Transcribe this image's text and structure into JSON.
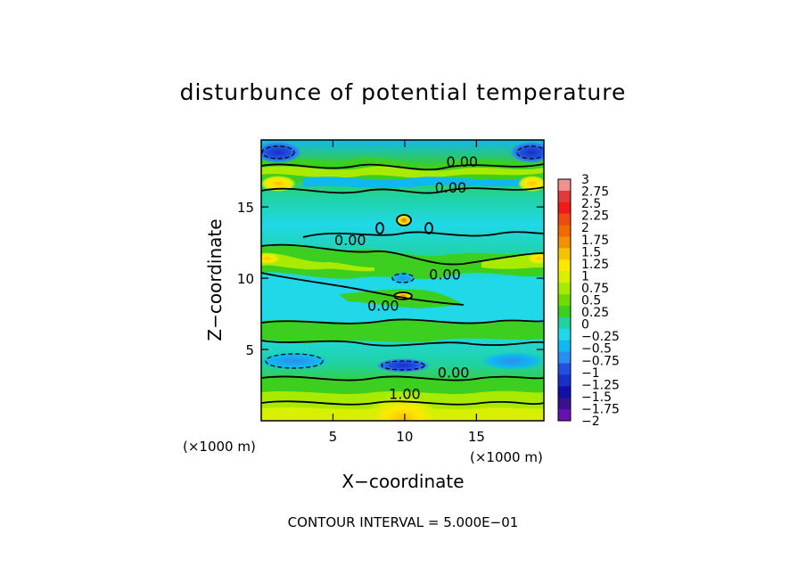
{
  "chart_data": {
    "type": "heatmap",
    "title": "disturbunce of potential temperature",
    "xlabel": "X−coordinate",
    "ylabel": "Z−coordinate",
    "x_unit": "(×1000 m)",
    "y_unit": "(×1000 m)",
    "xlim": [
      0,
      19.7
    ],
    "ylim": [
      0,
      19.7
    ],
    "x_ticks": [
      5,
      10,
      15
    ],
    "y_ticks": [
      5,
      10,
      15
    ],
    "footnote": "CONTOUR INTERVAL = 5.000E−01",
    "colorbar": {
      "range": [
        -2,
        3
      ],
      "tick_labels": [
        "3",
        "2.75",
        "2.5",
        "2.25",
        "2",
        "1.75",
        "1.5",
        "1.25",
        "1",
        "0.75",
        "0.5",
        "0.25",
        "0",
        "−0.25",
        "−0.5",
        "−0.75",
        "−1",
        "−1.25",
        "−1.5",
        "−1.75",
        "−2"
      ],
      "colors": [
        "#f09090",
        "#e03a3a",
        "#f01a1a",
        "#f04a10",
        "#f06a00",
        "#f29000",
        "#f5c300",
        "#ffe800",
        "#d8f000",
        "#a8ea00",
        "#6fdc00",
        "#3ccf20",
        "#20d2a0",
        "#20d8e8",
        "#10b8f0",
        "#2a8ef0",
        "#2050e0",
        "#1830c8",
        "#1010a8",
        "#3a1090",
        "#6a10b0"
      ]
    },
    "contour_labels": [
      {
        "text": "0.00",
        "x": 14.0,
        "z": 18.2
      },
      {
        "text": "0.00",
        "x": 13.2,
        "z": 16.4
      },
      {
        "text": "0.00",
        "x": 6.2,
        "z": 12.7
      },
      {
        "text": "0.00",
        "x": 12.8,
        "z": 10.3
      },
      {
        "text": "0.00",
        "x": 8.5,
        "z": 8.1
      },
      {
        "text": "0.00",
        "x": 13.4,
        "z": 3.4
      },
      {
        "text": "1.00",
        "x": 10.0,
        "z": 1.9
      }
    ],
    "field_features": [
      {
        "kind": "cold",
        "x": 1.0,
        "z": 18.9,
        "value": -1.25
      },
      {
        "kind": "cold",
        "x": 18.6,
        "z": 18.9,
        "value": -1.25
      },
      {
        "kind": "cold",
        "x": 10.0,
        "z": 3.7,
        "value": -1.25
      },
      {
        "kind": "cold",
        "x": 1.8,
        "z": 4.2,
        "value": -0.75
      },
      {
        "kind": "warm",
        "x": 10.0,
        "z": 0.5,
        "value": 1.5
      },
      {
        "kind": "warm",
        "x": 1.2,
        "z": 16.8,
        "value": 1.25
      },
      {
        "kind": "warm",
        "x": 18.5,
        "z": 16.8,
        "value": 1.25
      },
      {
        "kind": "warm",
        "x": 10.0,
        "z": 14.1,
        "value": 1.75
      },
      {
        "kind": "warm",
        "x": 10.0,
        "z": 8.8,
        "value": 1.75
      }
    ]
  }
}
